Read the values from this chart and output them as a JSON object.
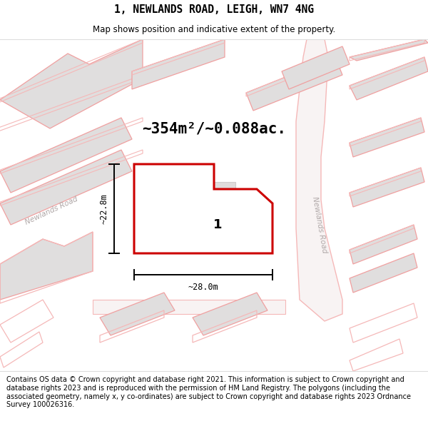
{
  "title": "1, NEWLANDS ROAD, LEIGH, WN7 4NG",
  "subtitle": "Map shows position and indicative extent of the property.",
  "area_text": "~354m²/~0.088ac.",
  "label_1": "1",
  "dim_width": "~28.0m",
  "dim_height": "~22.8m",
  "road_label_left": "Newlands Road",
  "road_label_right": "Newlands Road",
  "footer": "Contains OS data © Crown copyright and database right 2021. This information is subject to Crown copyright and database rights 2023 and is reproduced with the permission of HM Land Registry. The polygons (including the associated geometry, namely x, y co-ordinates) are subject to Crown copyright and database rights 2023 Ordnance Survey 100026316.",
  "bg_color": "#f7f2f2",
  "header_bg": "#ffffff",
  "footer_bg": "#ffffff",
  "plot_fill": "#ffffff",
  "plot_edge": "#cc0000",
  "building_fill": "#e0dede",
  "building_edge": "#f0a0a0",
  "road_pink": "#f5b8b8",
  "title_fontsize": 10.5,
  "subtitle_fontsize": 8.5,
  "area_fontsize": 15,
  "footer_fontsize": 7.0,
  "label1_fontsize": 13
}
